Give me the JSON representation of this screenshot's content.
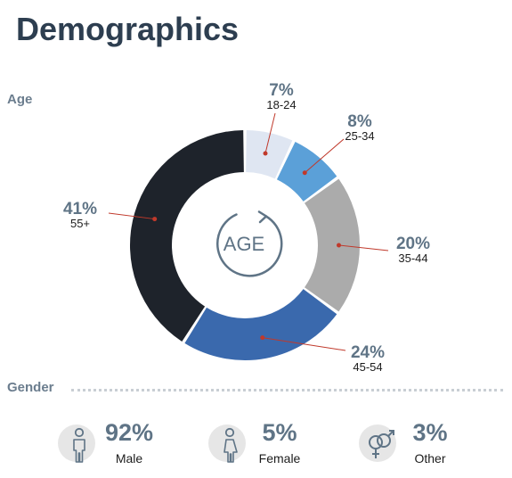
{
  "title": "Demographics",
  "age_section_label": "Age",
  "gender_section_label": "Gender",
  "center_label": "AGE",
  "chart_data": {
    "type": "pie",
    "title": "",
    "categories": [
      "18-24",
      "25-34",
      "35-44",
      "45-54",
      "55+"
    ],
    "values": [
      7,
      8,
      20,
      24,
      41
    ],
    "percent_labels": [
      "7%",
      "8%",
      "20%",
      "24%",
      "41%"
    ],
    "colors": [
      "#dfe6f2",
      "#5ba0d8",
      "#ababab",
      "#3a69ad",
      "#1e232b"
    ],
    "unit": "%"
  },
  "gender": [
    {
      "label": "Male",
      "percent": "92%",
      "icon": "male-icon"
    },
    {
      "label": "Female",
      "percent": "5%",
      "icon": "female-icon"
    },
    {
      "label": "Other",
      "percent": "3%",
      "icon": "gender-symbols-icon"
    }
  ],
  "colors": {
    "title": "#2d3e50",
    "accent_text": "#5f7486",
    "leader_line": "#c0392b",
    "icon_bg": "#e6e6e6"
  }
}
